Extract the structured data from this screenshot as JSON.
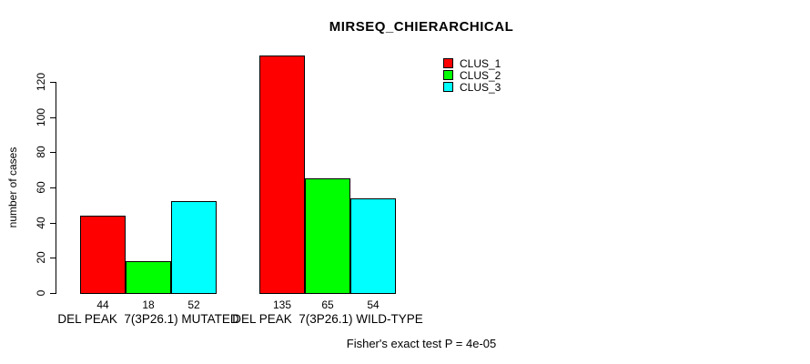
{
  "chart_data": {
    "type": "bar",
    "title": "MIRSEQ_CHIERARCHICAL",
    "xlabel": "",
    "ylabel": "number of cases",
    "categories": [
      "DEL PEAK  7(3P26.1) MUTATED",
      "DEL PEAK  7(3P26.1) WILD-TYPE"
    ],
    "series": [
      {
        "name": "CLUS_1",
        "color": "#ff0000",
        "values": [
          44,
          135
        ]
      },
      {
        "name": "CLUS_2",
        "color": "#00ff00",
        "values": [
          18,
          65
        ]
      },
      {
        "name": "CLUS_3",
        "color": "#00ffff",
        "values": [
          52,
          54
        ]
      }
    ],
    "yticks": [
      0,
      20,
      40,
      60,
      80,
      100,
      120
    ],
    "ylim": [
      0,
      135
    ],
    "grid": false,
    "legend_position": "top-right",
    "bar_value_labels_shown": true,
    "annotation": "Fisher's exact test P = 4e-05"
  },
  "colors": {
    "background": "#ffffff",
    "axis": "#000000",
    "text": "#000000"
  }
}
